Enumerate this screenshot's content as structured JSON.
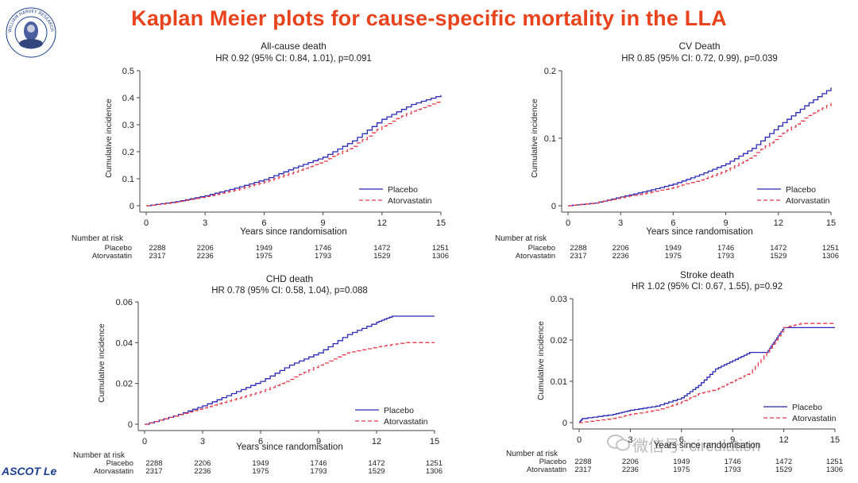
{
  "slide": {
    "title": "Kaplan Meier plots for cause-specific mortality in the LLA",
    "logo_text": "WILLIAM HARVEY RESEARCH INSTITUTE",
    "footer_logo": "ASCOT Le",
    "watermark": "微信号: circulation",
    "colors": {
      "title": "#e8431c",
      "placebo": "#2929b8",
      "atorvastatin": "#e8394a",
      "logo": "#1d3f8f"
    }
  },
  "chart_data": [
    {
      "type": "line",
      "title": "All-cause death",
      "subtitle": "HR 0.92 (95% CI: 0.84, 1.01), p=0.091",
      "xlabel": "Years since randomisation",
      "ylabel": "Cumulative incidence",
      "xlim": [
        0,
        15
      ],
      "ylim": [
        0,
        0.5
      ],
      "xticks": [
        0,
        3,
        6,
        9,
        12,
        15
      ],
      "yticks": [
        0,
        0.1,
        0.2,
        0.3,
        0.4,
        0.5
      ],
      "ytick_labels": [
        "0",
        "0.1",
        "0.2",
        "0.3",
        "0.4",
        "0.5"
      ],
      "legend": "bottom-right",
      "series": [
        {
          "name": "Placebo",
          "style": "solid",
          "color": "#2929b8",
          "x": [
            0,
            1.5,
            3,
            4.5,
            6,
            7.5,
            9,
            10.5,
            12,
            13.5,
            15
          ],
          "y": [
            0,
            0.015,
            0.037,
            0.065,
            0.097,
            0.14,
            0.18,
            0.24,
            0.32,
            0.375,
            0.41
          ]
        },
        {
          "name": "Atorvastatin",
          "style": "dashed",
          "color": "#e8394a",
          "x": [
            0,
            1.5,
            3,
            4.5,
            6,
            7.5,
            9,
            10.5,
            12,
            13.5,
            15
          ],
          "y": [
            0,
            0.013,
            0.034,
            0.058,
            0.088,
            0.125,
            0.165,
            0.22,
            0.295,
            0.35,
            0.39
          ]
        }
      ],
      "risk_table": {
        "header": "Number at risk",
        "rows": [
          {
            "label": "Placebo",
            "values": [
              "2288",
              "2206",
              "1949",
              "1746",
              "1472",
              "1251"
            ]
          },
          {
            "label": "Atorvastatin",
            "values": [
              "2317",
              "2236",
              "1975",
              "1793",
              "1529",
              "1306"
            ]
          }
        ]
      }
    },
    {
      "type": "line",
      "title": "CV Death",
      "subtitle": "HR 0.85 (95% CI: 0.72, 0.99), p=0.039",
      "xlabel": "Years since randomisation",
      "ylabel": "Cumulative incidence",
      "xlim": [
        0,
        15
      ],
      "ylim": [
        0,
        0.2
      ],
      "xticks": [
        0,
        3,
        6,
        9,
        12,
        15
      ],
      "yticks": [
        0,
        0.1,
        0.2
      ],
      "ytick_labels": [
        "0",
        "0.1",
        "0.2"
      ],
      "legend": "bottom-right",
      "series": [
        {
          "name": "Placebo",
          "style": "solid",
          "color": "#2929b8",
          "x": [
            0,
            1.5,
            3,
            4.5,
            6,
            7.5,
            9,
            10.5,
            12,
            13.5,
            15
          ],
          "y": [
            0,
            0.004,
            0.013,
            0.022,
            0.032,
            0.046,
            0.062,
            0.085,
            0.118,
            0.148,
            0.175
          ]
        },
        {
          "name": "Atorvastatin",
          "style": "dashed",
          "color": "#e8394a",
          "x": [
            0,
            1.5,
            3,
            4.5,
            6,
            7.5,
            9,
            10.5,
            12,
            13.5,
            15
          ],
          "y": [
            0,
            0.004,
            0.012,
            0.019,
            0.027,
            0.038,
            0.052,
            0.074,
            0.103,
            0.13,
            0.152
          ]
        }
      ],
      "risk_table": {
        "header": "Number at risk",
        "rows": [
          {
            "label": "Placebo",
            "values": [
              "2288",
              "2206",
              "1949",
              "1746",
              "1472",
              "1251"
            ]
          },
          {
            "label": "Atorvastatin",
            "values": [
              "2317",
              "2236",
              "1975",
              "1793",
              "1529",
              "1306"
            ]
          }
        ]
      }
    },
    {
      "type": "line",
      "title": "CHD death",
      "subtitle": "HR 0.78 (95% CI: 0.58, 1.04), p=0.088",
      "xlabel": "Years since randomisation",
      "ylabel": "Cumulative incidence",
      "xlim": [
        0,
        15
      ],
      "ylim": [
        0,
        0.06
      ],
      "xticks": [
        0,
        3,
        6,
        9,
        12,
        15
      ],
      "yticks": [
        0,
        0.02,
        0.04,
        0.06
      ],
      "ytick_labels": [
        "0",
        "0.02",
        "0.04",
        "0.06"
      ],
      "legend": "bottom-right",
      "series": [
        {
          "name": "Placebo",
          "style": "solid",
          "color": "#2929b8",
          "x": [
            0,
            1.5,
            3,
            4.5,
            6,
            7.5,
            9,
            10.5,
            12,
            12.8,
            15
          ],
          "y": [
            0,
            0.004,
            0.009,
            0.015,
            0.021,
            0.029,
            0.035,
            0.044,
            0.05,
            0.053,
            0.053
          ]
        },
        {
          "name": "Atorvastatin",
          "style": "dashed",
          "color": "#e8394a",
          "x": [
            0,
            1.5,
            3,
            4.5,
            6,
            7.5,
            9,
            10.5,
            12,
            13.5,
            15
          ],
          "y": [
            0,
            0.004,
            0.008,
            0.012,
            0.016,
            0.022,
            0.029,
            0.035,
            0.038,
            0.04,
            0.04
          ]
        }
      ],
      "risk_table": {
        "header": "Number at risk",
        "rows": [
          {
            "label": "Placebo",
            "values": [
              "2288",
              "2206",
              "1949",
              "1746",
              "1472",
              "1251"
            ]
          },
          {
            "label": "Atorvastatin",
            "values": [
              "2317",
              "2236",
              "1975",
              "1793",
              "1529",
              "1306"
            ]
          }
        ]
      }
    },
    {
      "type": "line",
      "title": "Stroke death",
      "subtitle": "HR 1.02 (95% CI: 0.67, 1.55), p=0.92",
      "xlabel": "Years since randomisation",
      "ylabel": "Cumulative incidence",
      "xlim": [
        0,
        15
      ],
      "ylim": [
        0,
        0.03
      ],
      "xticks": [
        0,
        3,
        6,
        9,
        12,
        15
      ],
      "yticks": [
        0,
        0.01,
        0.02,
        0.03
      ],
      "ytick_labels": [
        "0",
        "0.01",
        "0.02",
        "0.03"
      ],
      "legend": "bottom-right",
      "series": [
        {
          "name": "Placebo",
          "style": "solid",
          "color": "#2929b8",
          "x": [
            0,
            0.2,
            2,
            3,
            4.5,
            6,
            7,
            8,
            9,
            10,
            11,
            11.5,
            12,
            13,
            15
          ],
          "y": [
            0,
            0.001,
            0.002,
            0.003,
            0.004,
            0.006,
            0.009,
            0.013,
            0.015,
            0.017,
            0.017,
            0.02,
            0.023,
            0.023,
            0.023
          ]
        },
        {
          "name": "Atorvastatin",
          "style": "dashed",
          "color": "#e8394a",
          "x": [
            0,
            2,
            3,
            4.5,
            6,
            7,
            8,
            9,
            10,
            11,
            12,
            13,
            15
          ],
          "y": [
            0,
            0.001,
            0.002,
            0.003,
            0.005,
            0.007,
            0.008,
            0.01,
            0.012,
            0.017,
            0.023,
            0.024,
            0.024
          ]
        }
      ],
      "risk_table": {
        "header": "Number at risk",
        "rows": [
          {
            "label": "Placebo",
            "values": [
              "2288",
              "2206",
              "1949",
              "1746",
              "1472",
              "1251"
            ]
          },
          {
            "label": "Atorvastatin",
            "values": [
              "2317",
              "2236",
              "1975",
              "1793",
              "1529",
              "1306"
            ]
          }
        ]
      }
    }
  ]
}
